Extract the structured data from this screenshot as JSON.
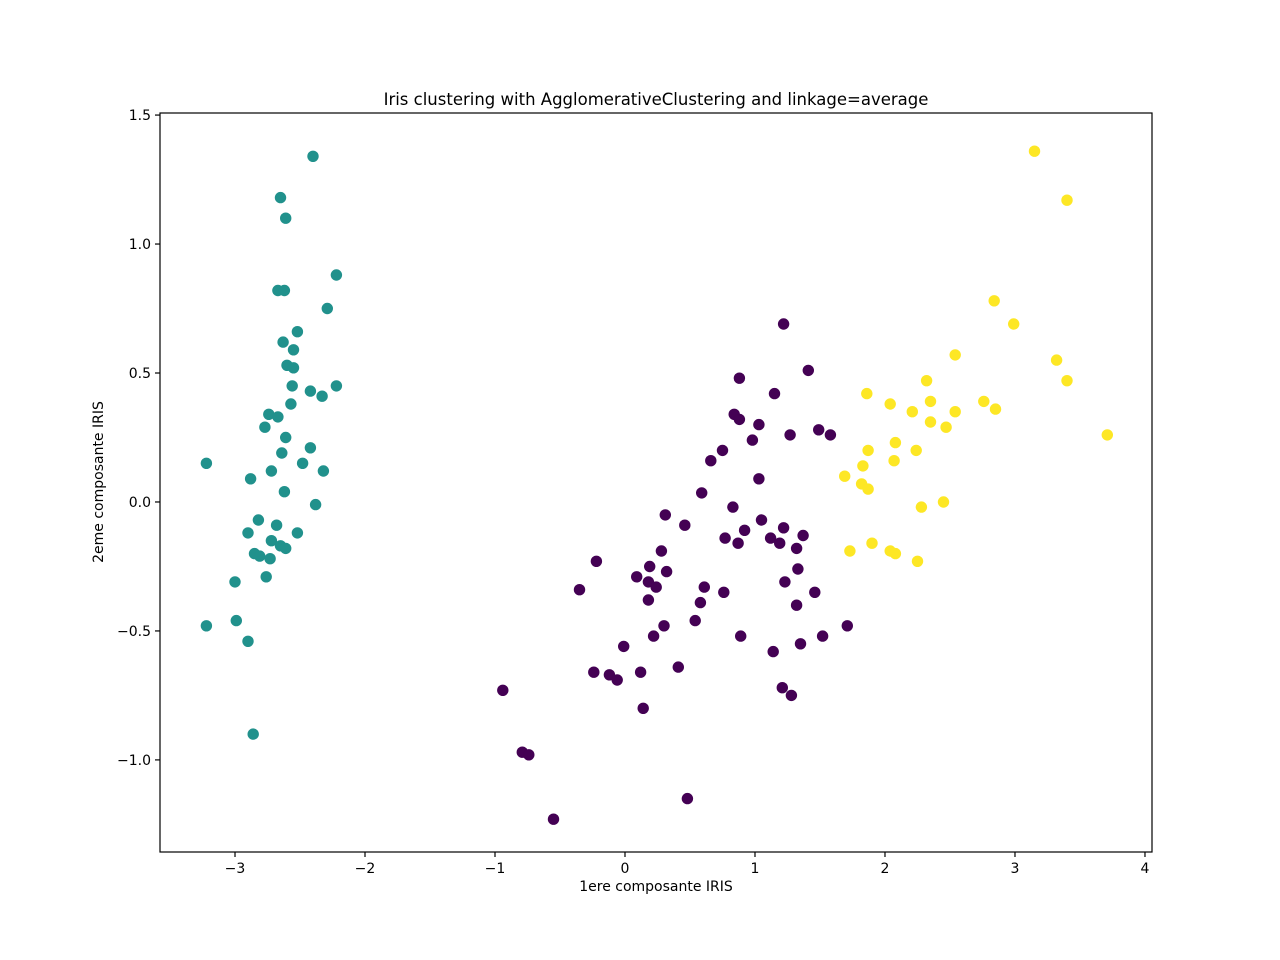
{
  "figure": {
    "background": "#ffffff",
    "text_color": "#000000"
  },
  "chart_data": {
    "type": "scatter",
    "title": "Iris clustering with AgglomerativeClustering and linkage=average",
    "xlabel": "1ere composante IRIS",
    "ylabel": "2eme composante IRIS",
    "xlim": [
      -3.577,
      4.054
    ],
    "ylim": [
      -1.357,
      1.508
    ],
    "x_ticks": [
      -3,
      -2,
      -1,
      0,
      1,
      2,
      3,
      4
    ],
    "x_tick_labels": [
      "−3",
      "−2",
      "−1",
      "0",
      "1",
      "2",
      "3",
      "4"
    ],
    "y_ticks": [
      1.5,
      1.0,
      0.5,
      0.0,
      -0.5,
      -1.0
    ],
    "y_tick_labels": [
      "1.5",
      "1.0",
      "0.5",
      "0.0",
      "−0.5",
      "−1.0"
    ],
    "grid": false,
    "legend_position": "none",
    "marker_radius_px": 5.7,
    "series": [
      {
        "name": "cluster-0-purple",
        "color": "#440154",
        "points": [
          [
            1.22,
            0.69
          ],
          [
            1.41,
            0.51
          ],
          [
            0.88,
            0.48
          ],
          [
            1.15,
            0.42
          ],
          [
            0.84,
            0.34
          ],
          [
            0.88,
            0.32
          ],
          [
            1.03,
            0.3
          ],
          [
            1.49,
            0.28
          ],
          [
            1.27,
            0.26
          ],
          [
            1.58,
            0.26
          ],
          [
            0.98,
            0.24
          ],
          [
            0.75,
            0.2
          ],
          [
            0.66,
            0.16
          ],
          [
            1.03,
            0.09
          ],
          [
            0.59,
            0.035
          ],
          [
            0.83,
            -0.02
          ],
          [
            0.31,
            -0.05
          ],
          [
            1.05,
            -0.07
          ],
          [
            0.46,
            -0.09
          ],
          [
            1.22,
            -0.1
          ],
          [
            0.92,
            -0.11
          ],
          [
            1.37,
            -0.13
          ],
          [
            0.77,
            -0.14
          ],
          [
            1.12,
            -0.14
          ],
          [
            0.87,
            -0.16
          ],
          [
            1.19,
            -0.16
          ],
          [
            1.32,
            -0.18
          ],
          [
            0.28,
            -0.19
          ],
          [
            -0.22,
            -0.23
          ],
          [
            0.19,
            -0.25
          ],
          [
            1.33,
            -0.26
          ],
          [
            0.32,
            -0.27
          ],
          [
            0.09,
            -0.29
          ],
          [
            1.23,
            -0.31
          ],
          [
            0.18,
            -0.31
          ],
          [
            0.24,
            -0.33
          ],
          [
            0.61,
            -0.33
          ],
          [
            -0.35,
            -0.34
          ],
          [
            0.76,
            -0.35
          ],
          [
            1.46,
            -0.35
          ],
          [
            0.18,
            -0.38
          ],
          [
            0.58,
            -0.39
          ],
          [
            1.32,
            -0.4
          ],
          [
            0.54,
            -0.46
          ],
          [
            0.3,
            -0.48
          ],
          [
            1.71,
            -0.48
          ],
          [
            0.22,
            -0.52
          ],
          [
            0.89,
            -0.52
          ],
          [
            1.52,
            -0.52
          ],
          [
            1.35,
            -0.55
          ],
          [
            -0.01,
            -0.56
          ],
          [
            1.14,
            -0.58
          ],
          [
            0.41,
            -0.64
          ],
          [
            -0.24,
            -0.66
          ],
          [
            0.12,
            -0.66
          ],
          [
            -0.12,
            -0.67
          ],
          [
            -0.06,
            -0.69
          ],
          [
            1.21,
            -0.72
          ],
          [
            -0.94,
            -0.73
          ],
          [
            1.28,
            -0.75
          ],
          [
            0.14,
            -0.8
          ],
          [
            -0.79,
            -0.97
          ],
          [
            -0.74,
            -0.98
          ],
          [
            0.48,
            -1.15
          ],
          [
            -0.55,
            -1.23
          ]
        ]
      },
      {
        "name": "cluster-1-teal",
        "color": "#21918c",
        "points": [
          [
            -2.4,
            1.34
          ],
          [
            -2.65,
            1.18
          ],
          [
            -2.61,
            1.1
          ],
          [
            -2.22,
            0.88
          ],
          [
            -2.67,
            0.82
          ],
          [
            -2.62,
            0.82
          ],
          [
            -2.29,
            0.75
          ],
          [
            -2.52,
            0.66
          ],
          [
            -2.63,
            0.62
          ],
          [
            -2.55,
            0.59
          ],
          [
            -2.6,
            0.53
          ],
          [
            -2.55,
            0.52
          ],
          [
            -2.56,
            0.45
          ],
          [
            -2.22,
            0.45
          ],
          [
            -2.42,
            0.43
          ],
          [
            -2.33,
            0.41
          ],
          [
            -2.57,
            0.38
          ],
          [
            -2.74,
            0.34
          ],
          [
            -2.67,
            0.33
          ],
          [
            -2.77,
            0.29
          ],
          [
            -2.61,
            0.25
          ],
          [
            -2.42,
            0.21
          ],
          [
            -2.64,
            0.19
          ],
          [
            -3.22,
            0.15
          ],
          [
            -2.48,
            0.15
          ],
          [
            -2.72,
            0.12
          ],
          [
            -2.32,
            0.12
          ],
          [
            -2.88,
            0.09
          ],
          [
            -2.62,
            0.04
          ],
          [
            -2.38,
            -0.01
          ],
          [
            -2.82,
            -0.07
          ],
          [
            -2.68,
            -0.09
          ],
          [
            -2.9,
            -0.12
          ],
          [
            -2.52,
            -0.12
          ],
          [
            -2.72,
            -0.15
          ],
          [
            -2.65,
            -0.17
          ],
          [
            -2.61,
            -0.18
          ],
          [
            -2.85,
            -0.2
          ],
          [
            -2.81,
            -0.21
          ],
          [
            -2.73,
            -0.22
          ],
          [
            -2.76,
            -0.29
          ],
          [
            -3.0,
            -0.31
          ],
          [
            -2.99,
            -0.46
          ],
          [
            -3.22,
            -0.48
          ],
          [
            -2.9,
            -0.54
          ],
          [
            -2.86,
            -0.9
          ]
        ]
      },
      {
        "name": "cluster-2-yellow",
        "color": "#fde725",
        "points": [
          [
            3.15,
            1.36
          ],
          [
            3.4,
            1.17
          ],
          [
            2.84,
            0.78
          ],
          [
            2.99,
            0.69
          ],
          [
            2.54,
            0.57
          ],
          [
            3.32,
            0.55
          ],
          [
            3.4,
            0.47
          ],
          [
            2.32,
            0.47
          ],
          [
            1.86,
            0.42
          ],
          [
            2.35,
            0.39
          ],
          [
            2.76,
            0.39
          ],
          [
            2.04,
            0.38
          ],
          [
            2.85,
            0.36
          ],
          [
            2.54,
            0.35
          ],
          [
            2.21,
            0.35
          ],
          [
            2.35,
            0.31
          ],
          [
            2.47,
            0.29
          ],
          [
            3.71,
            0.26
          ],
          [
            2.08,
            0.23
          ],
          [
            1.87,
            0.2
          ],
          [
            2.24,
            0.2
          ],
          [
            2.07,
            0.16
          ],
          [
            1.83,
            0.14
          ],
          [
            1.69,
            0.1
          ],
          [
            1.82,
            0.07
          ],
          [
            1.87,
            0.05
          ],
          [
            2.45,
            0.0
          ],
          [
            2.28,
            -0.02
          ],
          [
            1.9,
            -0.16
          ],
          [
            2.04,
            -0.19
          ],
          [
            1.73,
            -0.19
          ],
          [
            2.08,
            -0.2
          ],
          [
            2.25,
            -0.23
          ]
        ]
      }
    ]
  }
}
